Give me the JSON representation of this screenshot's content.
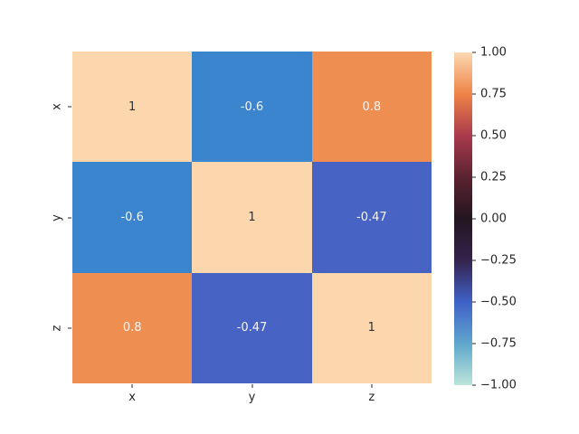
{
  "figure": {
    "background": "#ffffff",
    "axis_text_color": "#262626"
  },
  "chart_data": {
    "type": "heatmap",
    "title": "",
    "xlabel": "",
    "ylabel": "",
    "x_categories": [
      "x",
      "y",
      "z"
    ],
    "y_categories": [
      "x",
      "y",
      "z"
    ],
    "matrix": [
      [
        1,
        -0.6,
        0.8
      ],
      [
        -0.6,
        1,
        -0.47
      ],
      [
        0.8,
        -0.47,
        1
      ]
    ],
    "cells": [
      {
        "row": "x",
        "col": "x",
        "value": 1,
        "label": "1",
        "bg": "#fcd7ae",
        "fg": "#33302e"
      },
      {
        "row": "x",
        "col": "y",
        "value": -0.6,
        "label": "-0.6",
        "bg": "#3a85cd",
        "fg": "#f5f5f5"
      },
      {
        "row": "x",
        "col": "z",
        "value": 0.8,
        "label": "0.8",
        "bg": "#ee8e51",
        "fg": "#f5f5f5"
      },
      {
        "row": "y",
        "col": "x",
        "value": -0.6,
        "label": "-0.6",
        "bg": "#3a85cd",
        "fg": "#f5f5f5"
      },
      {
        "row": "y",
        "col": "y",
        "value": 1,
        "label": "1",
        "bg": "#fcd7ae",
        "fg": "#33302e"
      },
      {
        "row": "y",
        "col": "z",
        "value": -0.47,
        "label": "-0.47",
        "bg": "#4763c4",
        "fg": "#f5f5f5"
      },
      {
        "row": "z",
        "col": "x",
        "value": 0.8,
        "label": "0.8",
        "bg": "#ee8e51",
        "fg": "#f5f5f5"
      },
      {
        "row": "z",
        "col": "y",
        "value": -0.47,
        "label": "-0.47",
        "bg": "#4763c4",
        "fg": "#f5f5f5"
      },
      {
        "row": "z",
        "col": "z",
        "value": 1,
        "label": "1",
        "bg": "#fcd7ae",
        "fg": "#33302e"
      }
    ],
    "colorbar": {
      "position": "right",
      "vmin": -1,
      "vmax": 1,
      "colormap": "icefire",
      "ticks": [
        "1.00",
        "0.75",
        "0.50",
        "0.25",
        "0.00",
        "−0.25",
        "−0.50",
        "−0.75",
        "−1.00"
      ],
      "gradient_stops_top_to_bottom": [
        "#fbd9b2",
        "#ef8347",
        "#aa3a4d",
        "#5b2230",
        "#231620",
        "#34234d",
        "#4061c8",
        "#5fa7cd",
        "#bce5da"
      ]
    },
    "grid": false
  }
}
